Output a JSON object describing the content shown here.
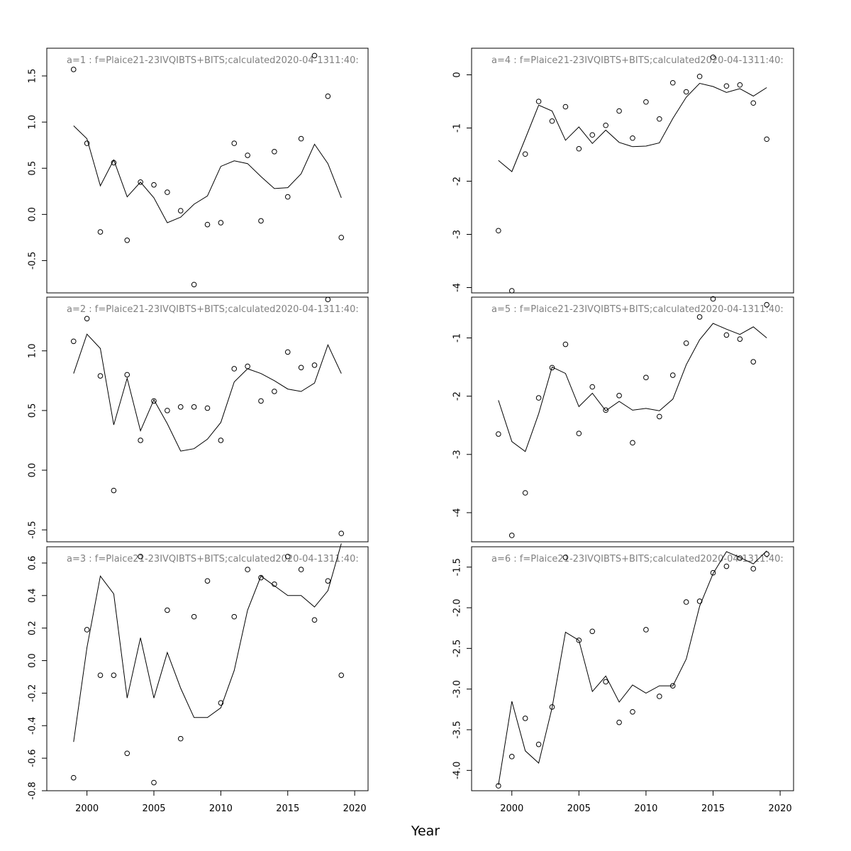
{
  "figure": {
    "xlabel": "Year",
    "xlim": [
      1997,
      2021
    ],
    "xticks": [
      2000,
      2005,
      2010,
      2015,
      2020
    ]
  },
  "chart_data": [
    {
      "type": "scatter+line",
      "title": "a=1  :  f=Plaice21-23IVQIBTS+BITS;calculated2020-04-1311:40:",
      "ylim": [
        -0.85,
        1.8
      ],
      "yticks": [
        -0.5,
        0.0,
        0.5,
        1.0,
        1.5
      ],
      "ytick_labels": [
        "-0.5",
        "0.0",
        "0.5",
        "1.0",
        "1.5"
      ],
      "x": [
        1999,
        2000,
        2001,
        2002,
        2003,
        2004,
        2005,
        2006,
        2007,
        2008,
        2009,
        2010,
        2011,
        2012,
        2013,
        2014,
        2015,
        2016,
        2017,
        2018,
        2019
      ],
      "observed": [
        1.57,
        0.77,
        -0.19,
        0.56,
        -0.28,
        0.35,
        0.32,
        0.24,
        0.04,
        -0.76,
        -0.11,
        -0.09,
        0.77,
        0.64,
        -0.07,
        0.68,
        0.19,
        0.82,
        1.72,
        1.28,
        -0.25
      ],
      "fitted": [
        0.96,
        0.82,
        0.31,
        0.59,
        0.19,
        0.35,
        0.18,
        -0.09,
        -0.03,
        0.11,
        0.2,
        0.52,
        0.58,
        0.55,
        0.41,
        0.28,
        0.29,
        0.44,
        0.76,
        0.55,
        0.18
      ]
    },
    {
      "type": "scatter+line",
      "title": "a=2  :  f=Plaice21-23IVQIBTS+BITS;calculated2020-04-1311:40:",
      "ylim": [
        -0.6,
        1.45
      ],
      "yticks": [
        -0.5,
        0.0,
        0.5,
        1.0
      ],
      "ytick_labels": [
        "-0.5",
        "0.0",
        "0.5",
        "1.0"
      ],
      "x": [
        1999,
        2000,
        2001,
        2002,
        2003,
        2004,
        2005,
        2006,
        2007,
        2008,
        2009,
        2010,
        2011,
        2012,
        2013,
        2014,
        2015,
        2016,
        2017,
        2018,
        2019
      ],
      "observed": [
        1.08,
        1.27,
        0.79,
        -0.17,
        0.8,
        0.25,
        0.58,
        0.5,
        0.53,
        0.53,
        0.52,
        0.25,
        0.85,
        0.87,
        0.58,
        0.66,
        0.99,
        0.86,
        0.88,
        1.43,
        -0.53
      ],
      "fitted": [
        0.81,
        1.14,
        1.02,
        0.38,
        0.77,
        0.33,
        0.59,
        0.39,
        0.16,
        0.18,
        0.26,
        0.4,
        0.74,
        0.85,
        0.81,
        0.75,
        0.68,
        0.66,
        0.73,
        1.05,
        0.81
      ]
    },
    {
      "type": "scatter+line",
      "title": "a=3  :  f=Plaice21-23IVQIBTS+BITS;calculated2020-04-1311:40:",
      "ylim": [
        -0.8,
        0.7
      ],
      "yticks": [
        -0.8,
        -0.6,
        -0.4,
        -0.2,
        0.0,
        0.2,
        0.4,
        0.6
      ],
      "ytick_labels": [
        "-0.8",
        "-0.6",
        "-0.4",
        "-0.2",
        "0.0",
        "0.2",
        "0.4",
        "0.6"
      ],
      "x": [
        1999,
        2000,
        2001,
        2002,
        2003,
        2004,
        2005,
        2006,
        2007,
        2008,
        2009,
        2010,
        2011,
        2012,
        2013,
        2014,
        2015,
        2016,
        2017,
        2018,
        2019
      ],
      "observed": [
        -0.72,
        0.19,
        -0.09,
        -0.09,
        -0.57,
        0.64,
        -0.75,
        0.31,
        -0.48,
        0.27,
        0.49,
        -0.26,
        0.27,
        0.56,
        0.51,
        0.47,
        0.64,
        0.56,
        0.25,
        0.49,
        -0.09
      ],
      "fitted": [
        -0.5,
        0.08,
        0.52,
        0.41,
        -0.23,
        0.14,
        -0.23,
        0.05,
        -0.17,
        -0.35,
        -0.35,
        -0.29,
        -0.06,
        0.31,
        0.52,
        0.46,
        0.4,
        0.4,
        0.33,
        0.43,
        0.72
      ]
    },
    {
      "type": "scatter+line",
      "title": "a=4  :  f=Plaice21-23IVQIBTS+BITS;calculated2020-04-1311:40:",
      "ylim": [
        -4.1,
        0.5
      ],
      "yticks": [
        -4,
        -3,
        -2,
        -1,
        0
      ],
      "ytick_labels": [
        "-4",
        "-3",
        "-2",
        "-1",
        "0"
      ],
      "x": [
        1999,
        2000,
        2001,
        2002,
        2003,
        2004,
        2005,
        2006,
        2007,
        2008,
        2009,
        2010,
        2011,
        2012,
        2013,
        2014,
        2015,
        2016,
        2017,
        2018,
        2019
      ],
      "observed": [
        -2.93,
        -4.06,
        -1.49,
        -0.5,
        -0.87,
        -0.6,
        -1.39,
        -1.13,
        -0.95,
        -0.68,
        -1.19,
        -0.51,
        -0.83,
        -0.15,
        -0.32,
        -0.03,
        0.33,
        -0.21,
        -0.19,
        -0.53,
        -1.21
      ],
      "fitted": [
        -1.61,
        -1.82,
        -1.2,
        -0.57,
        -0.68,
        -1.23,
        -0.98,
        -1.29,
        -1.04,
        -1.27,
        -1.35,
        -1.34,
        -1.28,
        -0.82,
        -0.42,
        -0.16,
        -0.22,
        -0.33,
        -0.26,
        -0.4,
        -0.24
      ]
    },
    {
      "type": "scatter+line",
      "title": "a=5  :  f=Plaice21-23IVQIBTS+BITS;calculated2020-04-1311:40:",
      "ylim": [
        -4.5,
        -0.3
      ],
      "yticks": [
        -4,
        -3,
        -2,
        -1
      ],
      "ytick_labels": [
        "-4",
        "-3",
        "-2",
        "-1"
      ],
      "x": [
        1999,
        2000,
        2001,
        2002,
        2003,
        2004,
        2005,
        2006,
        2007,
        2008,
        2009,
        2010,
        2011,
        2012,
        2013,
        2014,
        2015,
        2016,
        2017,
        2018,
        2019
      ],
      "observed": [
        -2.65,
        -4.39,
        -3.66,
        -2.03,
        -1.51,
        -1.11,
        -2.64,
        -1.84,
        -2.24,
        -1.99,
        -2.8,
        -1.68,
        -2.35,
        -1.64,
        -1.09,
        -0.64,
        -0.33,
        -0.95,
        -1.02,
        -1.41,
        -0.43
      ],
      "fitted": [
        -2.07,
        -2.78,
        -2.95,
        -2.3,
        -1.5,
        -1.61,
        -2.18,
        -1.95,
        -2.25,
        -2.09,
        -2.24,
        -2.21,
        -2.25,
        -2.05,
        -1.46,
        -1.03,
        -0.75,
        -0.85,
        -0.94,
        -0.81,
        -1.0
      ]
    },
    {
      "type": "scatter+line",
      "title": "a=6  :  f=Plaice21-23IVQIBTS+BITS;calculated2020-04-1311:40:",
      "ylim": [
        -4.25,
        -1.25
      ],
      "yticks": [
        -4.0,
        -3.5,
        -3.0,
        -2.5,
        -2.0,
        -1.5
      ],
      "ytick_labels": [
        "-4.0",
        "-3.5",
        "-3.0",
        "-2.5",
        "-2.0",
        "-1.5"
      ],
      "x": [
        1999,
        2000,
        2001,
        2002,
        2003,
        2004,
        2005,
        2006,
        2007,
        2008,
        2009,
        2010,
        2011,
        2012,
        2013,
        2014,
        2015,
        2016,
        2017,
        2018,
        2019
      ],
      "observed": [
        -4.19,
        -3.83,
        -3.36,
        -3.68,
        -3.22,
        -1.38,
        -2.4,
        -2.29,
        -2.91,
        -3.41,
        -3.28,
        -2.27,
        -3.09,
        -2.96,
        -1.93,
        -1.92,
        -1.57,
        -1.49,
        -1.39,
        -1.52,
        -1.34
      ],
      "fitted": [
        -4.18,
        -3.15,
        -3.76,
        -3.91,
        -3.23,
        -2.3,
        -2.4,
        -3.03,
        -2.84,
        -3.16,
        -2.95,
        -3.05,
        -2.96,
        -2.96,
        -2.63,
        -1.98,
        -1.58,
        -1.31,
        -1.38,
        -1.46,
        -1.3
      ]
    }
  ]
}
